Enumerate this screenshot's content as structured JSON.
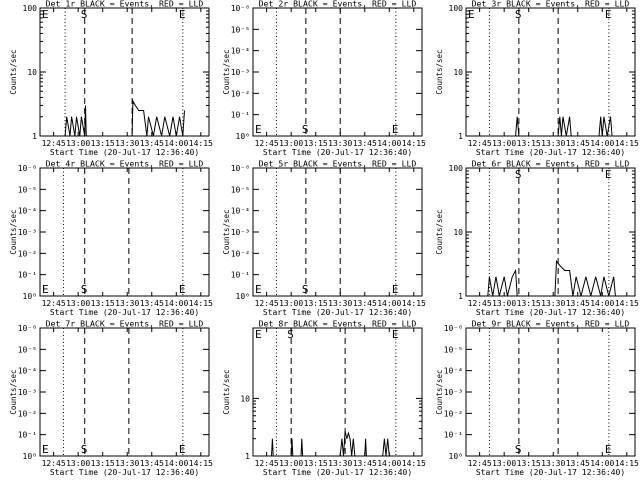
{
  "chart_data": [
    {
      "type": "line",
      "title": "Det 1r BLACK = Events, RED = LLD",
      "xlabel": "Start Time (20-Jul-17 12:36:40)",
      "ylabel": "Counts/sec",
      "yscale": "log",
      "yticks": [
        "1",
        "10",
        "100"
      ],
      "ylim": [
        1,
        100
      ],
      "xticks": [
        "12:45",
        "13:00",
        "13:15",
        "13:30",
        "13:45",
        "14:00",
        "14:15"
      ],
      "xlim": [
        "12:36:40",
        "14:20:00"
      ],
      "markers": [
        {
          "label": "E",
          "time": "12:36:40",
          "style": "dotted"
        },
        {
          "label": "",
          "time": "12:52:00",
          "style": "dotted"
        },
        {
          "label": "S",
          "time": "13:04:00",
          "style": "dashed"
        },
        {
          "label": "",
          "time": "13:33:00",
          "style": "dashed"
        },
        {
          "label": "E",
          "time": "14:04:00",
          "style": "dotted"
        }
      ],
      "series": [
        {
          "color": "#000000",
          "points": [
            [
              "12:52:00",
              1
            ],
            [
              "12:53:00",
              2
            ],
            [
              "12:55:00",
              1
            ],
            [
              "12:56:00",
              2
            ],
            [
              "12:58:00",
              1
            ],
            [
              "12:59:00",
              2
            ],
            [
              "13:01:00",
              1
            ],
            [
              "13:02:00",
              2
            ],
            [
              "13:04:00",
              1
            ],
            [
              "13:04:30",
              3
            ],
            [
              "13:05:00",
              1
            ],
            [
              "13:33:00",
              1
            ],
            [
              "13:33:30",
              3.5
            ],
            [
              "13:35:00",
              3
            ],
            [
              "13:37:00",
              2.5
            ],
            [
              "13:40:00",
              2.5
            ],
            [
              "13:42:00",
              1
            ],
            [
              "13:43:00",
              2
            ],
            [
              "13:46:00",
              1
            ],
            [
              "13:48:00",
              2
            ],
            [
              "13:51:00",
              1
            ],
            [
              "13:53:00",
              2
            ],
            [
              "13:56:00",
              1
            ],
            [
              "13:58:00",
              2
            ],
            [
              "14:00:00",
              1
            ],
            [
              "14:02:00",
              2
            ],
            [
              "14:04:00",
              1
            ],
            [
              "14:05:00",
              2.5
            ]
          ]
        }
      ]
    },
    {
      "type": "line",
      "title": "Det 2r BLACK = Events, RED = LLD",
      "xlabel": "Start Time (20-Jul-17 12:36:40)",
      "ylabel": "Counts/sec",
      "yscale": "log",
      "yticks": [
        "10⁰",
        "10⁻¹",
        "10⁻²",
        "10⁻³",
        "10⁻⁴",
        "10⁻⁵",
        "10⁻⁶"
      ],
      "xticks": [
        "12:45",
        "13:00",
        "13:15",
        "13:30",
        "13:45",
        "14:00",
        "14:15"
      ],
      "xlim": [
        "12:36:40",
        "14:20:00"
      ],
      "markers": [
        {
          "label": "E",
          "time": "12:36:40",
          "style": "dotted"
        },
        {
          "label": "",
          "time": "12:51:00",
          "style": "dotted"
        },
        {
          "label": "S",
          "time": "13:09:00",
          "style": "dashed"
        },
        {
          "label": "",
          "time": "13:30:00",
          "style": "dashed"
        },
        {
          "label": "E",
          "time": "14:04:00",
          "style": "dotted"
        }
      ],
      "series": []
    },
    {
      "type": "line",
      "title": "Det 3r BLACK = Events, RED = LLD",
      "xlabel": "Start Time (20-Jul-17 12:36:40)",
      "ylabel": "Counts/sec",
      "yscale": "log",
      "yticks": [
        "1",
        "10",
        "100"
      ],
      "xticks": [
        "12:45",
        "13:00",
        "13:15",
        "13:30",
        "13:45",
        "14:00",
        "14:15"
      ],
      "xlim": [
        "12:36:40",
        "14:20:00"
      ],
      "markers": [
        {
          "label": "E",
          "time": "12:36:40",
          "style": "dotted"
        },
        {
          "label": "",
          "time": "12:51:00",
          "style": "dotted"
        },
        {
          "label": "S",
          "time": "13:09:00",
          "style": "dashed"
        },
        {
          "label": "",
          "time": "13:33:00",
          "style": "dashed"
        },
        {
          "label": "E",
          "time": "14:04:00",
          "style": "dotted"
        }
      ],
      "series": [
        {
          "color": "#000000",
          "points": [
            [
              "13:07:00",
              1
            ],
            [
              "13:08:00",
              2
            ],
            [
              "13:09:00",
              1
            ],
            [
              "13:33:00",
              1
            ],
            [
              "13:34:00",
              2
            ],
            [
              "13:35:00",
              1
            ],
            [
              "13:36:00",
              2
            ],
            [
              "13:38:00",
              1
            ],
            [
              "13:40:00",
              2
            ],
            [
              "13:41:00",
              1
            ],
            [
              "13:58:00",
              1
            ],
            [
              "13:59:00",
              2
            ],
            [
              "14:00:00",
              1
            ],
            [
              "14:01:00",
              2
            ],
            [
              "14:03:00",
              1
            ],
            [
              "14:05:00",
              2
            ],
            [
              "14:06:00",
              1
            ]
          ]
        }
      ]
    },
    {
      "type": "line",
      "title": "Det 4r BLACK = Events, RED = LLD",
      "xlabel": "Start Time (20-Jul-17 12:36:40)",
      "ylabel": "Counts/sec",
      "yscale": "log",
      "yticks": [
        "10⁰",
        "10⁻¹",
        "10⁻²",
        "10⁻³",
        "10⁻⁴",
        "10⁻⁵",
        "10⁻⁶"
      ],
      "xticks": [
        "12:45",
        "13:00",
        "13:15",
        "13:30",
        "13:45",
        "14:00",
        "14:15"
      ],
      "xlim": [
        "12:36:40",
        "14:20:00"
      ],
      "markers": [
        {
          "label": "E",
          "time": "12:36:40",
          "style": "dotted"
        },
        {
          "label": "",
          "time": "12:51:00",
          "style": "dotted"
        },
        {
          "label": "S",
          "time": "13:04:00",
          "style": "dashed"
        },
        {
          "label": "",
          "time": "13:31:00",
          "style": "dashed"
        },
        {
          "label": "E",
          "time": "14:04:00",
          "style": "dotted"
        }
      ],
      "series": []
    },
    {
      "type": "line",
      "title": "Det 5r BLACK = Events, RED = LLD",
      "xlabel": "Start Time (20-Jul-17 12:36:40)",
      "ylabel": "Counts/sec",
      "yscale": "log",
      "yticks": [
        "10⁰",
        "10⁻¹",
        "10⁻²",
        "10⁻³",
        "10⁻⁴",
        "10⁻⁵",
        "10⁻⁶"
      ],
      "xticks": [
        "12:45",
        "13:00",
        "13:15",
        "13:30",
        "13:45",
        "14:00",
        "14:15"
      ],
      "xlim": [
        "12:36:40",
        "14:20:00"
      ],
      "markers": [
        {
          "label": "E",
          "time": "12:36:40",
          "style": "dotted"
        },
        {
          "label": "",
          "time": "12:51:00",
          "style": "dotted"
        },
        {
          "label": "S",
          "time": "13:09:00",
          "style": "dashed"
        },
        {
          "label": "",
          "time": "13:30:00",
          "style": "dashed"
        },
        {
          "label": "E",
          "time": "14:04:00",
          "style": "dotted"
        }
      ],
      "series": []
    },
    {
      "type": "line",
      "title": "Det 6r BLACK = Events, RED = LLD",
      "xlabel": "Start Time (20-Jul-17 12:36:40)",
      "ylabel": "Counts/sec",
      "yscale": "log",
      "yticks": [
        "1",
        "10",
        "100"
      ],
      "xticks": [
        "12:45",
        "13:00",
        "13:15",
        "13:30",
        "13:45",
        "14:00",
        "14:15"
      ],
      "xlim": [
        "12:36:40",
        "14:20:00"
      ],
      "markers": [
        {
          "label": "",
          "time": "12:36:40",
          "style": "dotted"
        },
        {
          "label": "",
          "time": "12:51:00",
          "style": "dotted"
        },
        {
          "label": "S",
          "time": "13:09:00",
          "style": "dashed"
        },
        {
          "label": "",
          "time": "13:33:00",
          "style": "dashed"
        },
        {
          "label": "E",
          "time": "14:04:00",
          "style": "dotted"
        }
      ],
      "series": [
        {
          "color": "#000000",
          "points": [
            [
              "12:50:00",
              1
            ],
            [
              "12:51:00",
              2
            ],
            [
              "12:53:00",
              1
            ],
            [
              "12:55:00",
              2
            ],
            [
              "12:57:00",
              1
            ],
            [
              "13:00:00",
              2
            ],
            [
              "13:02:00",
              1
            ],
            [
              "13:05:00",
              2
            ],
            [
              "13:07:00",
              2.5
            ],
            [
              "13:08:00",
              1
            ],
            [
              "13:31:00",
              1
            ],
            [
              "13:32:00",
              3.5
            ],
            [
              "13:34:00",
              3
            ],
            [
              "13:37:00",
              2.5
            ],
            [
              "13:40:00",
              2.5
            ],
            [
              "13:42:00",
              1
            ],
            [
              "13:44:00",
              2
            ],
            [
              "13:47:00",
              1
            ],
            [
              "13:50:00",
              2
            ],
            [
              "13:53:00",
              1
            ],
            [
              "13:56:00",
              2
            ],
            [
              "13:59:00",
              1
            ],
            [
              "14:01:00",
              2
            ],
            [
              "14:04:00",
              1
            ],
            [
              "14:07:00",
              2
            ],
            [
              "14:08:00",
              1
            ]
          ]
        }
      ]
    },
    {
      "type": "line",
      "title": "Det 7r BLACK = Events, RED = LLD",
      "xlabel": "Start Time (20-Jul-17 12:36:40)",
      "ylabel": "Counts/sec",
      "yscale": "log",
      "yticks": [
        "10⁰",
        "10⁻¹",
        "10⁻²",
        "10⁻³",
        "10⁻⁴",
        "10⁻⁵",
        "10⁻⁶"
      ],
      "xticks": [
        "12:45",
        "13:00",
        "13:15",
        "13:30",
        "13:45",
        "14:00",
        "14:15"
      ],
      "xlim": [
        "12:36:40",
        "14:20:00"
      ],
      "markers": [
        {
          "label": "E",
          "time": "12:36:40",
          "style": "dotted"
        },
        {
          "label": "",
          "time": "12:51:00",
          "style": "dotted"
        },
        {
          "label": "S",
          "time": "13:04:00",
          "style": "dashed"
        },
        {
          "label": "",
          "time": "13:31:00",
          "style": "dashed"
        },
        {
          "label": "E",
          "time": "14:04:00",
          "style": "dotted"
        }
      ],
      "series": []
    },
    {
      "type": "line",
      "title": "Det 8r BLACK = Events, RED = LLD",
      "xlabel": "Start Time (20-Jul-17 12:36:40)",
      "ylabel": "Counts/sec",
      "yscale": "log",
      "yticks": [
        "1",
        "10"
      ],
      "xticks": [
        "12:45",
        "13:00",
        "13:15",
        "13:30",
        "13:45",
        "14:00",
        "14:15"
      ],
      "xlim": [
        "12:36:40",
        "14:20:00"
      ],
      "markers": [
        {
          "label": "E",
          "time": "12:36:40",
          "style": "dotted"
        },
        {
          "label": "",
          "time": "12:51:00",
          "style": "dotted"
        },
        {
          "label": "S",
          "time": "13:00:00",
          "style": "dashed"
        },
        {
          "label": "",
          "time": "13:33:00",
          "style": "dashed"
        },
        {
          "label": "E",
          "time": "14:04:00",
          "style": "dotted"
        }
      ],
      "series": [
        {
          "color": "#000000",
          "points": [
            [
              "12:48:00",
              1
            ],
            [
              "12:48:30",
              2
            ],
            [
              "12:49:00",
              1
            ],
            [
              "13:00:00",
              1
            ],
            [
              "13:00:30",
              2
            ],
            [
              "13:01:00",
              1
            ],
            [
              "13:06:00",
              1
            ],
            [
              "13:06:30",
              2
            ],
            [
              "13:07:00",
              1
            ],
            [
              "13:30:00",
              1
            ],
            [
              "13:31:00",
              2
            ],
            [
              "13:32:00",
              1
            ],
            [
              "13:33:00",
              2.7
            ],
            [
              "13:34:00",
              2
            ],
            [
              "13:35:00",
              2.5
            ],
            [
              "13:36:00",
              2
            ],
            [
              "13:37:00",
              1
            ],
            [
              "13:38:00",
              2
            ],
            [
              "13:39:00",
              1
            ],
            [
              "13:45:00",
              1
            ],
            [
              "13:45:30",
              2
            ],
            [
              "13:46:00",
              1
            ],
            [
              "13:56:00",
              1
            ],
            [
              "13:57:00",
              2
            ],
            [
              "13:58:00",
              1
            ],
            [
              "13:59:00",
              2
            ],
            [
              "14:00:00",
              1
            ]
          ]
        }
      ]
    },
    {
      "type": "line",
      "title": "Det 9r BLACK = Events, RED = LLD",
      "xlabel": "Start Time (20-Jul-17 12:36:40)",
      "ylabel": "Counts/sec",
      "yscale": "log",
      "yticks": [
        "10⁰",
        "10⁻¹",
        "10⁻²",
        "10⁻³",
        "10⁻⁴",
        "10⁻⁵",
        "10⁻⁶"
      ],
      "xticks": [
        "12:45",
        "13:00",
        "13:15",
        "13:30",
        "13:45",
        "14:00",
        "14:15"
      ],
      "xlim": [
        "12:36:40",
        "14:20:00"
      ],
      "markers": [
        {
          "label": "",
          "time": "12:36:40",
          "style": "dotted"
        },
        {
          "label": "",
          "time": "12:51:00",
          "style": "dotted"
        },
        {
          "label": "S",
          "time": "13:09:00",
          "style": "dashed"
        },
        {
          "label": "",
          "time": "13:33:00",
          "style": "dashed"
        },
        {
          "label": "E",
          "time": "14:04:00",
          "style": "dotted"
        }
      ],
      "series": []
    }
  ]
}
